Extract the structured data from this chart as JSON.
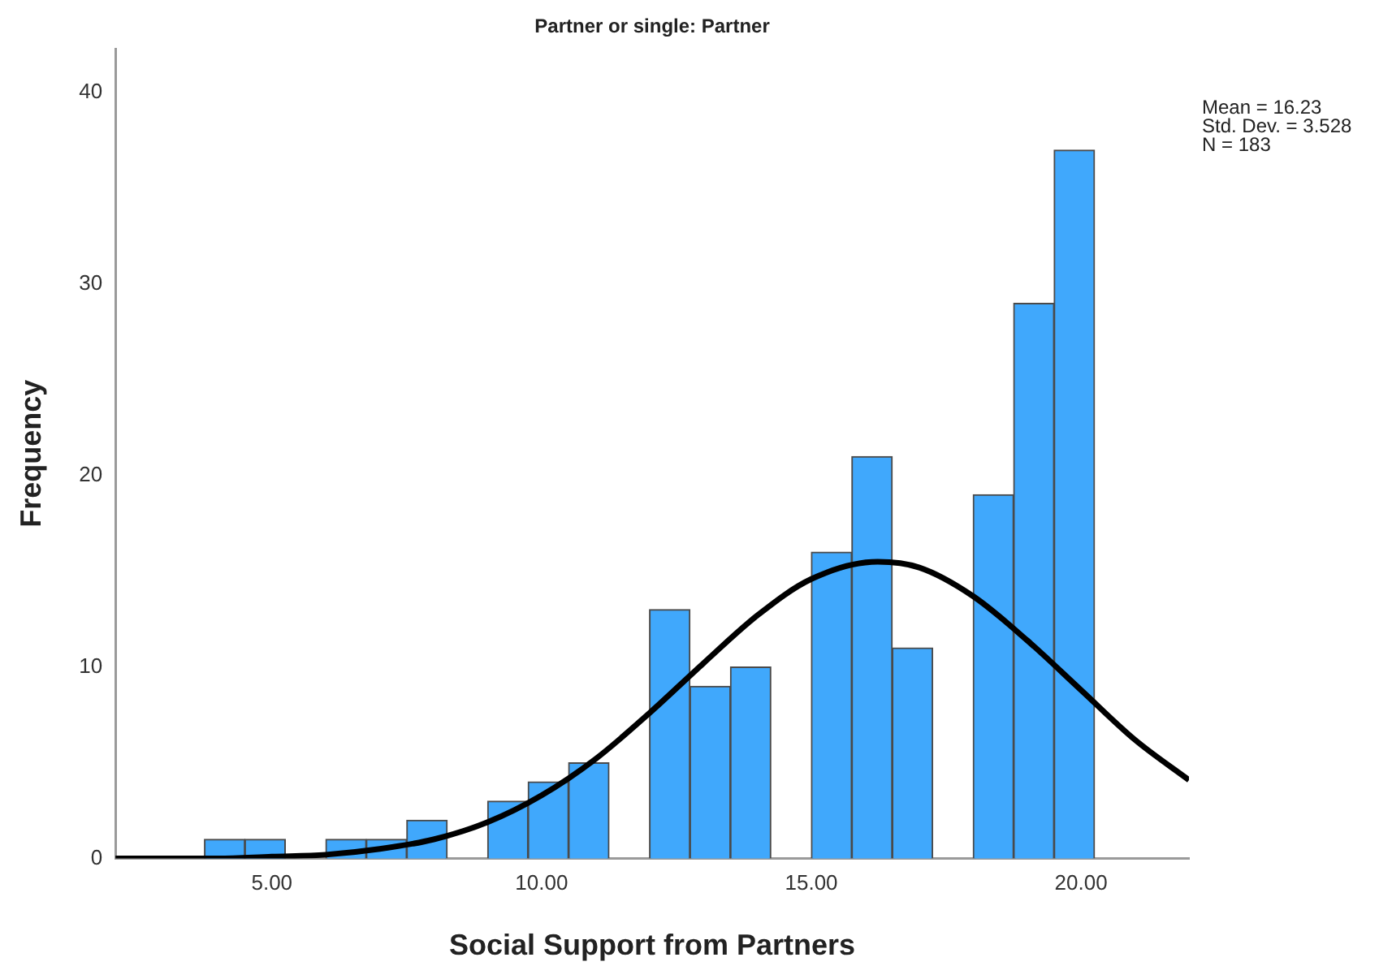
{
  "chart_data": {
    "type": "histogram",
    "title": "Partner or single: Partner",
    "xlabel": "Social Support from Partners",
    "ylabel": "Frequency",
    "annotations": [
      "Mean = 16.23",
      "Std. Dev. = 3.528",
      "N = 183"
    ],
    "bins": [
      3.75,
      4.5,
      5.25,
      6.0,
      6.75,
      7.5,
      8.25,
      9.0,
      9.75,
      10.5,
      11.25,
      12.0,
      12.75,
      13.5,
      14.25,
      15.0,
      15.75,
      16.5,
      17.25,
      18.0,
      18.75,
      19.5,
      20.25
    ],
    "values": [
      1,
      1,
      0,
      1,
      1,
      2,
      0,
      3,
      4,
      5,
      0,
      13,
      9,
      10,
      0,
      16,
      21,
      11,
      0,
      19,
      29,
      37
    ],
    "color": "#40a8fc",
    "series": [
      {
        "type": "line",
        "color": "#000000",
        "marker": "none",
        "x": [
          2.1,
          3,
          4,
          5,
          6,
          7,
          8,
          9,
          10,
          11,
          12,
          13,
          14,
          15,
          16.23,
          17,
          18,
          19,
          20,
          21,
          22
        ],
        "values": [
          0.0,
          0.0,
          0.0,
          0.1,
          0.2,
          0.5,
          1.0,
          1.9,
          3.3,
          5.2,
          7.6,
          10.2,
          12.7,
          14.6,
          15.5,
          15.2,
          13.7,
          11.4,
          8.8,
          6.2,
          4.1
        ]
      }
    ],
    "xlim": [
      2.1,
      22
    ],
    "xticks": [
      {
        "value": 5,
        "label": "5.00"
      },
      {
        "value": 10,
        "label": "10.00"
      },
      {
        "value": 15,
        "label": "15.00"
      },
      {
        "value": 20,
        "label": "20.00"
      }
    ],
    "ylim": [
      0,
      42.3
    ],
    "yticks": [
      0,
      10,
      20,
      30,
      40
    ],
    "grid": false,
    "legend": false
  }
}
